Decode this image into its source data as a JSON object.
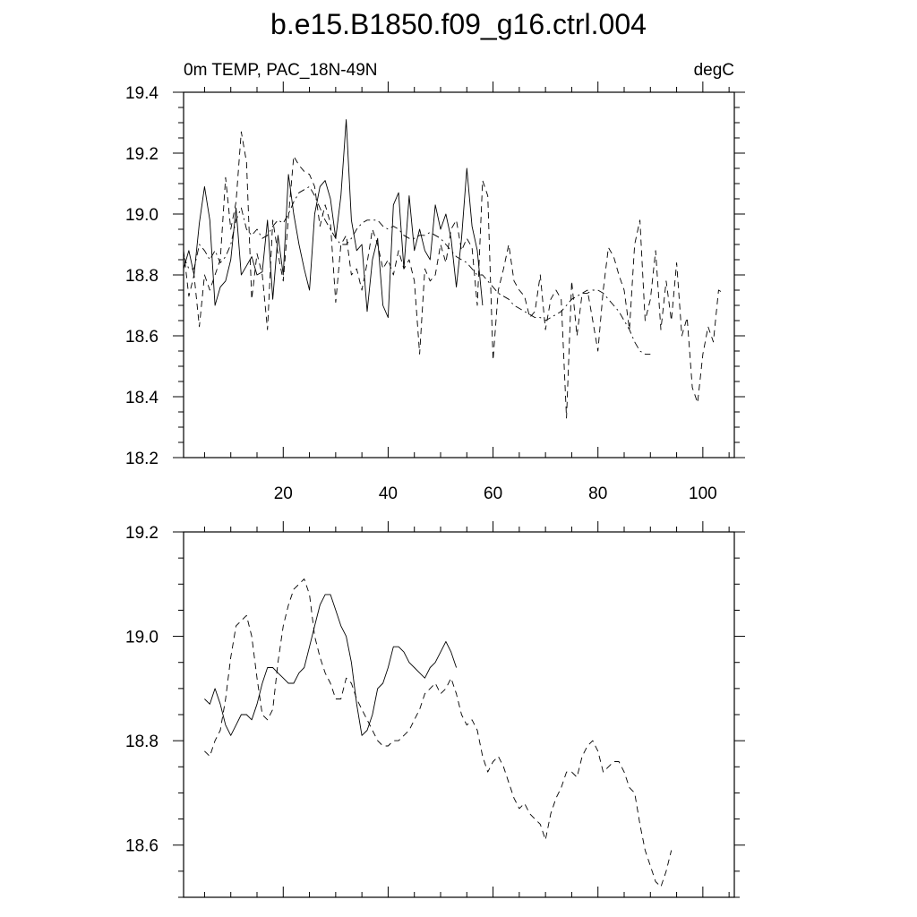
{
  "figure": {
    "title": "b.e15.B1850.f09_g16.ctrl.004"
  },
  "chart_data": [
    {
      "type": "line",
      "title_left": "0m TEMP, PAC_18N-49N",
      "title_right": "degC",
      "xlim": [
        1,
        106
      ],
      "ylim": [
        18.2,
        19.4
      ],
      "x_ticks": [
        20,
        40,
        60,
        80,
        100
      ],
      "y_ticks": [
        "18.2",
        "18.4",
        "18.6",
        "18.8",
        "19.0",
        "19.2",
        "19.4"
      ],
      "grid": false,
      "series": [
        {
          "style": "solid",
          "x_start": 1,
          "values": [
            18.82,
            18.88,
            18.8,
            18.97,
            19.09,
            18.98,
            18.7,
            18.76,
            18.78,
            18.85,
            19.02,
            18.8,
            18.83,
            18.86,
            18.8,
            18.81,
            18.98,
            18.72,
            18.93,
            18.8,
            19.13,
            19.0,
            18.9,
            18.82,
            18.75,
            19.0,
            19.09,
            19.11,
            19.05,
            18.92,
            19.06,
            19.31,
            18.98,
            18.88,
            18.9,
            18.68,
            18.85,
            18.92,
            18.7,
            18.66,
            19.03,
            19.07,
            18.82,
            19.06,
            18.88,
            18.95,
            18.88,
            18.85,
            19.03,
            18.95,
            19.0,
            18.92,
            18.76,
            18.92,
            19.15,
            18.96,
            18.88,
            18.7
          ]
        },
        {
          "style": "dashed",
          "x_start": 1,
          "values": [
            18.88,
            18.73,
            18.8,
            18.63,
            18.8,
            18.75,
            18.8,
            18.85,
            19.12,
            18.95,
            19.04,
            19.27,
            19.17,
            18.72,
            18.87,
            18.8,
            18.62,
            18.98,
            18.87,
            18.78,
            18.99,
            19.19,
            19.16,
            19.14,
            19.13,
            19.09,
            18.96,
            19.03,
            18.97,
            18.71,
            18.9,
            18.93,
            18.8,
            18.82,
            18.75,
            18.84,
            18.95,
            18.9,
            18.82,
            18.85,
            18.8,
            18.88,
            18.82,
            18.85,
            18.78,
            18.54,
            18.82,
            18.78,
            18.8,
            18.9,
            18.84,
            18.95,
            18.98,
            18.88,
            18.92,
            18.89,
            18.7,
            19.11,
            19.06,
            18.52,
            18.75,
            18.82,
            18.9,
            18.78,
            18.75,
            18.73,
            18.66,
            18.68,
            18.8,
            18.62,
            18.72,
            18.75,
            18.72,
            18.33,
            18.78,
            18.6,
            18.74,
            18.75,
            18.65,
            18.55,
            18.75,
            18.89,
            18.86,
            18.8,
            18.75,
            18.62,
            18.9,
            18.98,
            18.65,
            18.72,
            18.88,
            18.62,
            18.78,
            18.65,
            18.84,
            18.6,
            18.66,
            18.43,
            18.38,
            18.54,
            18.63,
            18.58,
            18.75,
            18.74
          ]
        },
        {
          "style": "dash-dot",
          "x_start": 1,
          "values": [
            18.86,
            18.82,
            18.82,
            18.9,
            18.88,
            18.85,
            18.88,
            18.84,
            18.86,
            18.9,
            18.98,
            19.02,
            18.95,
            18.93,
            18.95,
            18.92,
            18.93,
            18.96,
            18.98,
            18.97,
            19.0,
            19.04,
            19.07,
            19.08,
            19.09,
            19.06,
            19.02,
            18.98,
            18.95,
            18.92,
            18.9,
            18.9,
            18.92,
            18.95,
            18.97,
            18.98,
            18.98,
            18.98,
            18.96,
            18.95,
            18.96,
            18.95,
            18.93,
            18.92,
            18.92,
            18.93,
            18.93,
            18.94,
            18.93,
            18.92,
            18.9,
            18.88,
            18.86,
            18.85,
            18.84,
            18.82,
            18.8,
            18.8,
            18.78,
            18.76,
            18.74,
            18.73,
            18.72,
            18.7,
            18.69,
            18.68,
            18.67,
            18.66,
            18.66,
            18.65,
            18.66,
            18.67,
            18.68,
            18.7,
            18.72,
            18.73,
            18.74,
            18.74,
            18.75,
            18.75,
            18.74,
            18.72,
            18.7,
            18.68,
            18.65,
            18.62,
            18.58,
            18.55,
            18.54,
            18.54
          ]
        }
      ]
    },
    {
      "type": "line",
      "xlim": [
        1,
        106
      ],
      "ylim": [
        18.5,
        19.2
      ],
      "y_ticks": [
        "18.6",
        "18.8",
        "19.0",
        "19.2"
      ],
      "grid": false,
      "series": [
        {
          "style": "solid",
          "x_start": 5,
          "values": [
            18.88,
            18.87,
            18.9,
            18.87,
            18.83,
            18.81,
            18.83,
            18.85,
            18.85,
            18.84,
            18.87,
            18.91,
            18.94,
            18.94,
            18.93,
            18.92,
            18.91,
            18.91,
            18.93,
            18.94,
            18.98,
            19.02,
            19.06,
            19.08,
            19.08,
            19.05,
            19.02,
            19.0,
            18.95,
            18.87,
            18.81,
            18.82,
            18.85,
            18.9,
            18.91,
            18.94,
            18.98,
            18.98,
            18.97,
            18.95,
            18.94,
            18.93,
            18.92,
            18.94,
            18.95,
            18.97,
            18.99,
            18.97,
            18.94
          ]
        },
        {
          "style": "dashed",
          "x_start": 5,
          "values": [
            18.78,
            18.77,
            18.8,
            18.82,
            18.88,
            18.96,
            19.02,
            19.03,
            19.04,
            19.0,
            18.92,
            18.85,
            18.84,
            18.86,
            18.95,
            19.02,
            19.06,
            19.09,
            19.1,
            19.11,
            19.08,
            19.0,
            18.96,
            18.93,
            18.91,
            18.88,
            18.88,
            18.92,
            18.91,
            18.88,
            18.86,
            18.84,
            18.82,
            18.8,
            18.79,
            18.79,
            18.8,
            18.8,
            18.81,
            18.82,
            18.84,
            18.86,
            18.89,
            18.9,
            18.91,
            18.89,
            18.9,
            18.92,
            18.89,
            18.85,
            18.83,
            18.84,
            18.82,
            18.77,
            18.74,
            18.76,
            18.77,
            18.75,
            18.72,
            18.69,
            18.67,
            18.68,
            18.66,
            18.65,
            18.64,
            18.61,
            18.66,
            18.69,
            18.71,
            18.74,
            18.74,
            18.73,
            18.77,
            18.79,
            18.8,
            18.78,
            18.74,
            18.75,
            18.76,
            18.76,
            18.74,
            18.71,
            18.7,
            18.64,
            18.59,
            18.56,
            18.53,
            18.52,
            18.55,
            18.59
          ]
        }
      ]
    }
  ]
}
